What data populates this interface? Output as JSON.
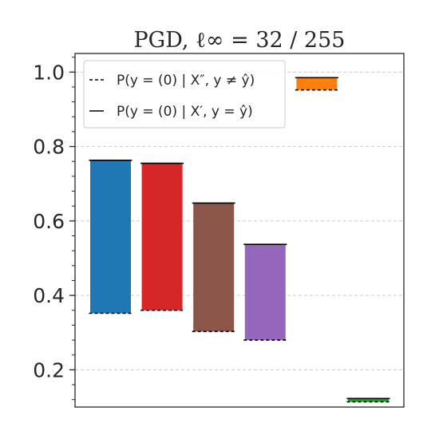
{
  "chart_data": {
    "type": "bar",
    "title": "PGD, ℓ∞ = 32 / 255",
    "xlabel": "",
    "ylabel": "",
    "ylim": [
      0.1,
      1.05
    ],
    "yticks": [
      0.2,
      0.4,
      0.6,
      0.8,
      1.0
    ],
    "ytick_labels": [
      "0.2",
      "0.4",
      "0.6",
      "0.8",
      "1.0"
    ],
    "grid": true,
    "legend_position": "top-left",
    "legend": [
      {
        "style": "dashed",
        "label": "P(y = (0) | X″, y ≠ ŷ)"
      },
      {
        "style": "solid",
        "label": "P(y = (0) | X′, y = ŷ)"
      }
    ],
    "series": [
      {
        "color": "#1f77b4",
        "top": 0.763,
        "bottom": 0.352
      },
      {
        "color": "#d62728",
        "top": 0.755,
        "bottom": 0.36
      },
      {
        "color": "#8c564b",
        "top": 0.648,
        "bottom": 0.303
      },
      {
        "color": "#9467bd",
        "top": 0.537,
        "bottom": 0.28
      },
      {
        "color": "#ff7f0e",
        "top": 0.985,
        "bottom": 0.952
      },
      {
        "color": "#2ca02c",
        "top": 0.123,
        "bottom": 0.114
      }
    ]
  }
}
